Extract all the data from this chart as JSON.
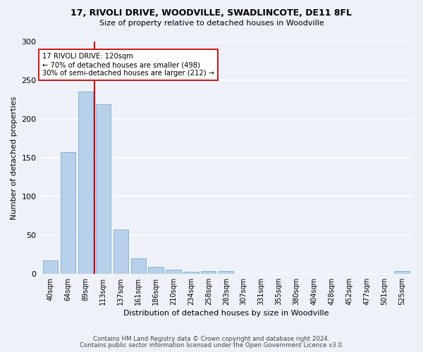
{
  "title1": "17, RIVOLI DRIVE, WOODVILLE, SWADLINCOTE, DE11 8FL",
  "title2": "Size of property relative to detached houses in Woodville",
  "xlabel": "Distribution of detached houses by size in Woodville",
  "ylabel": "Number of detached properties",
  "bar_color": "#b8d0ea",
  "bar_edge_color": "#7aadd4",
  "categories": [
    "40sqm",
    "64sqm",
    "89sqm",
    "113sqm",
    "137sqm",
    "161sqm",
    "186sqm",
    "210sqm",
    "234sqm",
    "258sqm",
    "283sqm",
    "307sqm",
    "331sqm",
    "355sqm",
    "380sqm",
    "404sqm",
    "428sqm",
    "452sqm",
    "477sqm",
    "501sqm",
    "525sqm"
  ],
  "values": [
    17,
    157,
    235,
    219,
    57,
    20,
    9,
    5,
    2,
    3,
    3,
    0,
    0,
    0,
    0,
    0,
    0,
    0,
    0,
    0,
    3
  ],
  "vline_x": 2.5,
  "vline_color": "#cc0000",
  "annotation_text": "17 RIVOLI DRIVE: 120sqm\n← 70% of detached houses are smaller (498)\n30% of semi-detached houses are larger (212) →",
  "annotation_box_color": "white",
  "annotation_box_edge": "#cc0000",
  "ylim": [
    0,
    300
  ],
  "yticks": [
    0,
    50,
    100,
    150,
    200,
    250,
    300
  ],
  "footer1": "Contains HM Land Registry data © Crown copyright and database right 2024.",
  "footer2": "Contains public sector information licensed under the Open Government Licence v3.0.",
  "background_color": "#eef2f8",
  "grid_color": "white"
}
